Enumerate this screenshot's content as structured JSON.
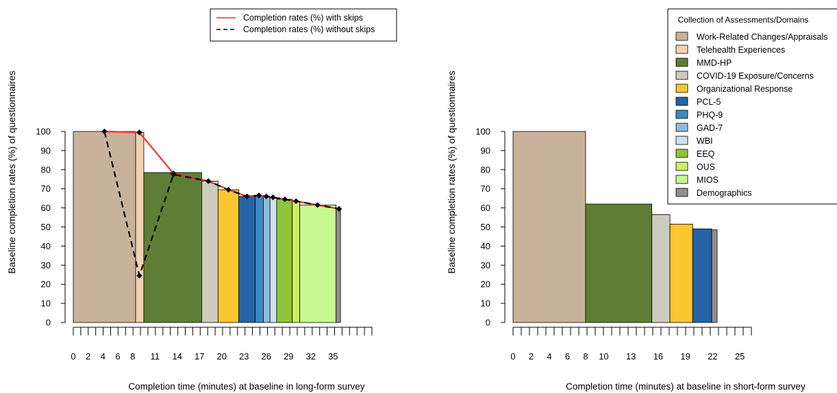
{
  "colors": {
    "Work-Related Changes/Appraisals": "#c8b29b",
    "Telehealth Experiences": "#f3d2b2",
    "MMD-HP": "#5f7e35",
    "COVID-19 Exposure/Concerns": "#cdcbbc",
    "Organizational Response": "#fbc730",
    "PCL-5": "#2563a7",
    "PHQ-9": "#3a8ac0",
    "GAD-7": "#8dbce0",
    "WBI": "#cfe1f1",
    "EEQ": "#8dc43a",
    "OUS": "#cfee60",
    "MIOS": "#c8f990",
    "Demographics": "#8f8f8f",
    "line_with_skips": "#ff2a2a",
    "line_without_skips": "#000000"
  },
  "chart_data": [
    {
      "type": "bar",
      "xlabel": "Completion time (minutes) at baseline in long-form survey",
      "ylabel": "Baseline completion rates (%) of questionnaires",
      "xlim": [
        0,
        37
      ],
      "ylim": [
        0,
        100
      ],
      "yticks": [
        "0",
        "10",
        "20",
        "30",
        "40",
        "50",
        "60",
        "70",
        "80",
        "90",
        "100"
      ],
      "xtick_labels": [
        {
          "x": 0,
          "label": "0"
        },
        {
          "x": 2,
          "label": "2"
        },
        {
          "x": 4,
          "label": "4"
        },
        {
          "x": 6,
          "label": "6"
        },
        {
          "x": 8,
          "label": "8"
        },
        {
          "x": 11,
          "label": "11"
        },
        {
          "x": 14,
          "label": "14"
        },
        {
          "x": 17,
          "label": "17"
        },
        {
          "x": 20,
          "label": "20"
        },
        {
          "x": 23,
          "label": "23"
        },
        {
          "x": 26,
          "label": "26"
        },
        {
          "x": 29,
          "label": "29"
        },
        {
          "x": 32,
          "label": "32"
        },
        {
          "x": 35,
          "label": "35"
        }
      ],
      "bars": [
        {
          "category": "Work-Related Changes/Appraisals",
          "start": 0,
          "end": 8.4,
          "value": 100
        },
        {
          "category": "Telehealth Experiences",
          "start": 8.4,
          "end": 9.5,
          "value": 99.5
        },
        {
          "category": "MMD-HP",
          "start": 9.5,
          "end": 17.3,
          "value": 78.5
        },
        {
          "category": "COVID-19 Exposure/Concerns",
          "start": 17.3,
          "end": 19.5,
          "value": 74
        },
        {
          "category": "Organizational Response",
          "start": 19.5,
          "end": 22.3,
          "value": 69.5
        },
        {
          "category": "PCL-5",
          "start": 22.3,
          "end": 24.5,
          "value": 66
        },
        {
          "category": "PHQ-9",
          "start": 24.5,
          "end": 25.6,
          "value": 66.5
        },
        {
          "category": "GAD-7",
          "start": 25.6,
          "end": 26.5,
          "value": 66
        },
        {
          "category": "WBI",
          "start": 26.5,
          "end": 27.4,
          "value": 65.5
        },
        {
          "category": "EEQ",
          "start": 27.4,
          "end": 29.5,
          "value": 64.5
        },
        {
          "category": "OUS",
          "start": 29.5,
          "end": 30.5,
          "value": 63.5
        },
        {
          "category": "MIOS",
          "start": 30.5,
          "end": 35.4,
          "value": 61.5
        },
        {
          "category": "Demographics",
          "start": 35.4,
          "end": 36,
          "value": 59.5
        }
      ],
      "series": [
        {
          "name": "Completion rates (%) with skips",
          "style": "solid",
          "x": [
            4.2,
            8.9,
            13.5,
            18.2,
            20.9,
            23.4,
            25.0,
            26.0,
            26.9,
            28.5,
            30.0,
            32.9,
            35.8
          ],
          "y": [
            100,
            99.5,
            78,
            74,
            69.5,
            66,
            66.5,
            66,
            65.5,
            64.5,
            63.5,
            61.5,
            59.5
          ]
        },
        {
          "name": "Completion rates (%) without skips",
          "style": "dashed",
          "x": [
            4.2,
            8.9,
            13.5,
            18.2,
            20.9,
            23.4,
            25.0,
            26.0,
            26.9,
            28.5,
            30.0,
            32.9,
            35.8
          ],
          "y": [
            100,
            24.5,
            77.5,
            74,
            69.5,
            66,
            66.5,
            66,
            65.5,
            64.5,
            63.5,
            61.5,
            59.5
          ]
        }
      ],
      "legend_position": "top-right"
    },
    {
      "type": "bar",
      "xlabel": "Completion time (minutes) at baseline in short-form survey",
      "ylabel": "Baseline completion rates (%) of questionnaires",
      "xlim": [
        0,
        26.5
      ],
      "ylim": [
        0,
        100
      ],
      "yticks": [
        "0",
        "10",
        "20",
        "30",
        "40",
        "50",
        "60",
        "70",
        "80",
        "90",
        "100"
      ],
      "xtick_labels": [
        {
          "x": 0,
          "label": "0"
        },
        {
          "x": 2,
          "label": "2"
        },
        {
          "x": 4,
          "label": "4"
        },
        {
          "x": 6,
          "label": "6"
        },
        {
          "x": 8,
          "label": "8"
        },
        {
          "x": 10,
          "label": "10"
        },
        {
          "x": 13,
          "label": "13"
        },
        {
          "x": 16,
          "label": "16"
        },
        {
          "x": 19,
          "label": "19"
        },
        {
          "x": 22,
          "label": "22"
        },
        {
          "x": 25,
          "label": "25"
        }
      ],
      "bars": [
        {
          "category": "Work-Related Changes/Appraisals",
          "start": 0,
          "end": 8,
          "value": 100
        },
        {
          "category": "MMD-HP",
          "start": 8,
          "end": 15.3,
          "value": 62
        },
        {
          "category": "COVID-19 Exposure/Concerns",
          "start": 15.3,
          "end": 17.3,
          "value": 56.5
        },
        {
          "category": "Organizational Response",
          "start": 17.3,
          "end": 19.8,
          "value": 51.5
        },
        {
          "category": "PCL-5",
          "start": 19.8,
          "end": 21.9,
          "value": 49
        },
        {
          "category": "Demographics",
          "start": 21.9,
          "end": 22.5,
          "value": 48.5
        }
      ],
      "legend_title": "Collection of Assessments/Domains",
      "legend_items": [
        "Work-Related Changes/Appraisals",
        "Telehealth Experiences",
        "MMD-HP",
        "COVID-19 Exposure/Concerns",
        "Organizational Response",
        "PCL-5",
        "PHQ-9",
        "GAD-7",
        "WBI",
        "EEQ",
        "OUS",
        "MIOS",
        "Demographics"
      ],
      "legend_position": "top-right"
    }
  ]
}
